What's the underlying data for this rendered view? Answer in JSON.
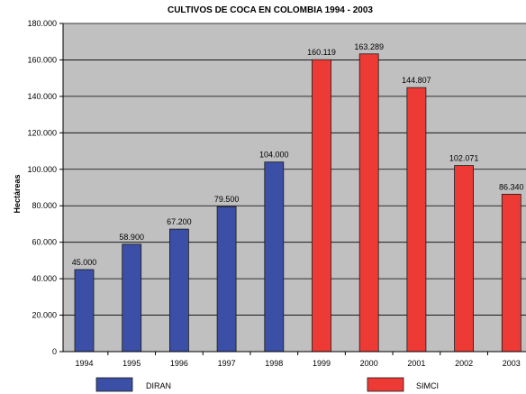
{
  "chart_data": {
    "type": "bar",
    "title": "CULTIVOS DE COCA EN COLOMBIA 1994 - 2003",
    "xlabel": "",
    "ylabel": "Hectáreas",
    "categories": [
      "1994",
      "1995",
      "1996",
      "1997",
      "1998",
      "1999",
      "2000",
      "2001",
      "2002",
      "2003"
    ],
    "series": [
      {
        "name": "DIRAN",
        "color": "#3a4fa5",
        "values": [
          45000,
          58900,
          67200,
          79500,
          104000,
          null,
          null,
          null,
          null,
          null
        ]
      },
      {
        "name": "SIMCI",
        "color": "#ee3a35",
        "values": [
          null,
          null,
          null,
          null,
          null,
          160119,
          163289,
          144807,
          102071,
          86340
        ]
      }
    ],
    "data_labels": [
      "45.000",
      "58.900",
      "67.200",
      "79.500",
      "104.000",
      "160.119",
      "163.289",
      "144.807",
      "102.071",
      "86.340"
    ],
    "ylim": [
      0,
      180000
    ],
    "yticks": [
      0,
      20000,
      40000,
      60000,
      80000,
      100000,
      120000,
      140000,
      160000,
      180000
    ],
    "ytick_labels": [
      "0",
      "20.000",
      "40.000",
      "60.000",
      "80.000",
      "100.000",
      "120.000",
      "140.000",
      "160.000",
      "180.000"
    ],
    "grid": true,
    "legend": "bottom",
    "plot_background": "#c0c0c0"
  }
}
